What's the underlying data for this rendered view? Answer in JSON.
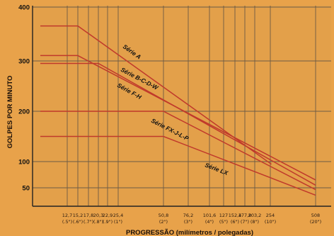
{
  "chart_data": {
    "type": "line",
    "title": "",
    "xlabel": "PROGRESSÃO (milímetros / polegadas)",
    "ylabel": "GOLPES POR MINUTO",
    "ylim": [
      0,
      400
    ],
    "y_ticks": [
      "400",
      "300",
      "200",
      "100",
      "50"
    ],
    "x_ticks": [
      {
        "mm": 12.7,
        "label_mm": "12,7",
        "label_in": "(.5\")"
      },
      {
        "mm": 15.2,
        "label_mm": "15,2",
        "label_in": "(.6\")"
      },
      {
        "mm": 17.8,
        "label_mm": "17,8",
        "label_in": "(.7\")"
      },
      {
        "mm": 20.3,
        "label_mm": "20,3",
        "label_in": "(.8\")"
      },
      {
        "mm": 22.9,
        "label_mm": "22,9",
        "label_in": "(.9\")"
      },
      {
        "mm": 25.4,
        "label_mm": "25,4",
        "label_in": "(1\")"
      },
      {
        "mm": 50.8,
        "label_mm": "50,8",
        "label_in": "(2\")"
      },
      {
        "mm": 76.2,
        "label_mm": "76,2",
        "label_in": "(3\")"
      },
      {
        "mm": 101.6,
        "label_mm": "101,6",
        "label_in": "(4\")"
      },
      {
        "mm": 127,
        "label_mm": "127",
        "label_in": "(5\")"
      },
      {
        "mm": 152.4,
        "label_mm": "152,4",
        "label_in": "(6\")"
      },
      {
        "mm": 177.8,
        "label_mm": "177,8",
        "label_in": "(7\")"
      },
      {
        "mm": 203.2,
        "label_mm": "203,2",
        "label_in": "(8\")"
      },
      {
        "mm": 254,
        "label_mm": "254",
        "label_in": "(10\")"
      },
      {
        "mm": 508,
        "label_mm": "508",
        "label_in": "(20\")"
      }
    ],
    "grid": true,
    "line_color": "#c0392b",
    "series": [
      {
        "name": "Série A",
        "points": [
          [
            5,
            365
          ],
          [
            15.2,
            365
          ],
          [
            260,
            95
          ]
        ]
      },
      {
        "name": "Série B-C-D-W",
        "points": [
          [
            5,
            310
          ],
          [
            15.2,
            310
          ],
          [
            508,
            65
          ]
        ]
      },
      {
        "name": "Série F-H",
        "points": [
          [
            5,
            295
          ],
          [
            20.3,
            295
          ],
          [
            508,
            55
          ]
        ]
      },
      {
        "name": "Série FX-J-L-P",
        "points": [
          [
            5,
            200
          ],
          [
            50.8,
            200
          ],
          [
            508,
            45
          ]
        ]
      },
      {
        "name": "Série LX",
        "points": [
          [
            5,
            150
          ],
          [
            50.8,
            150
          ],
          [
            508,
            30
          ]
        ]
      }
    ]
  }
}
